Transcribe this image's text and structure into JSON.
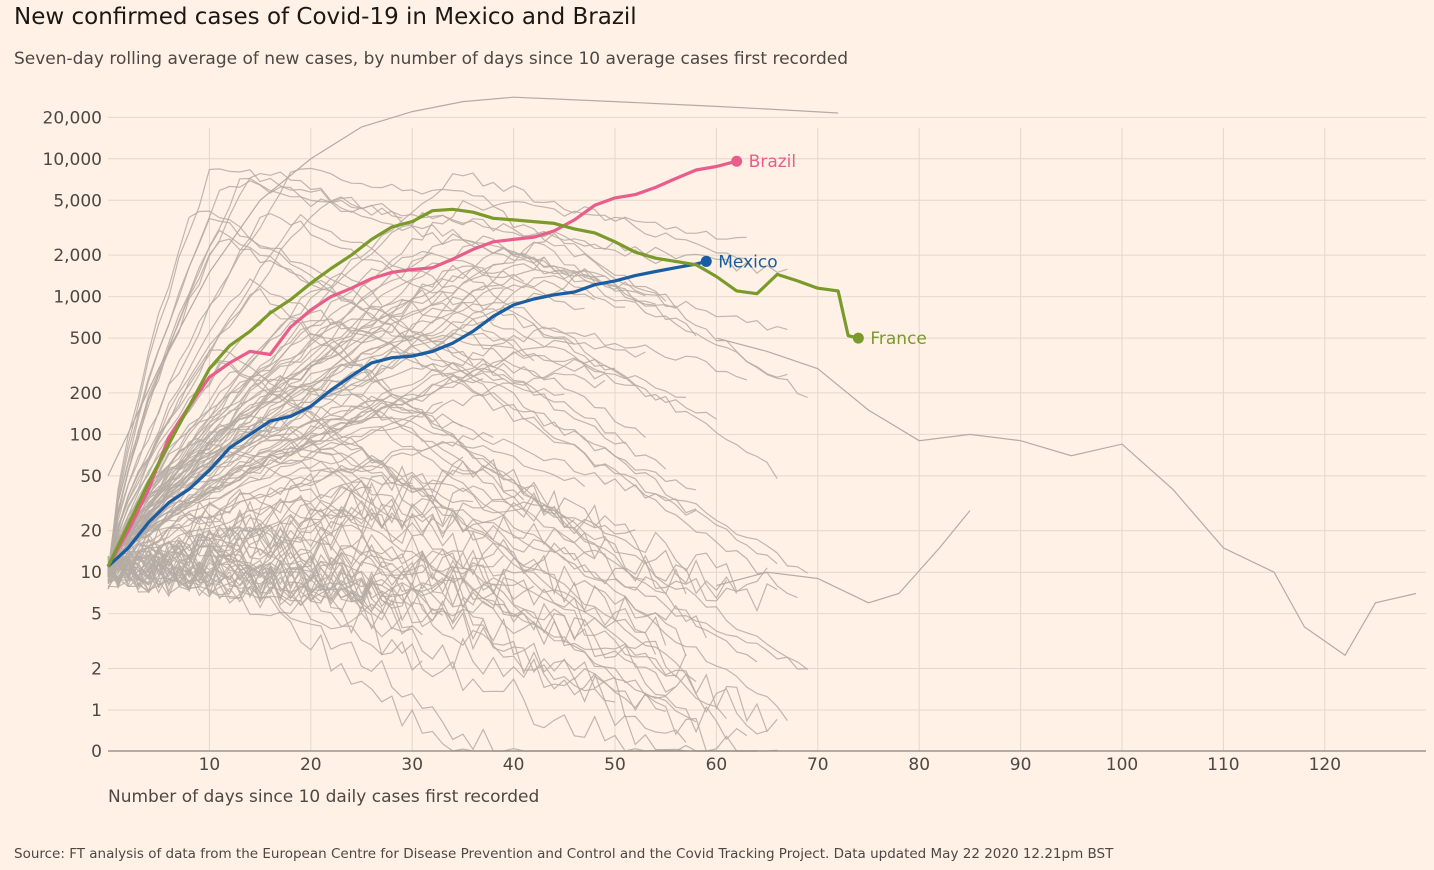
{
  "chart_data": {
    "type": "line",
    "title": "New confirmed cases of Covid-19 in Mexico and Brazil",
    "subtitle": "Seven-day rolling average of new cases, by number of days since 10 average cases first recorded",
    "xlabel": "Number of days since 10 daily cases first recorded",
    "source": "Source: FT analysis of data from the European Centre for Disease Prevention and Control and the Covid Tracking Project. Data updated May 22 2020 12.21pm BST",
    "xlim": [
      0,
      130
    ],
    "y_scale": "log",
    "x_ticks": [
      10,
      20,
      30,
      40,
      50,
      60,
      70,
      80,
      90,
      100,
      110,
      120
    ],
    "x_tick_labels": [
      "10",
      "20",
      "30",
      "40",
      "50",
      "60",
      "70",
      "80",
      "90",
      "100",
      "110",
      "120"
    ],
    "y_ticks": [
      0,
      1,
      2,
      5,
      10,
      20,
      50,
      100,
      200,
      500,
      1000,
      2000,
      5000,
      10000,
      20000
    ],
    "y_tick_labels": [
      "0",
      "1",
      "2",
      "5",
      "10",
      "20",
      "50",
      "100",
      "200",
      "500",
      "1,000",
      "2,000",
      "5,000",
      "10,000",
      "20,000"
    ],
    "grid": true,
    "highlight_series": [
      {
        "name": "Brazil",
        "color": "#e95d8c",
        "x": [
          0,
          2,
          4,
          6,
          8,
          10,
          12,
          14,
          16,
          18,
          20,
          22,
          24,
          26,
          28,
          30,
          32,
          34,
          36,
          38,
          40,
          42,
          44,
          46,
          48,
          50,
          52,
          54,
          56,
          58,
          60,
          62
        ],
        "y": [
          11,
          20,
          40,
          95,
          160,
          260,
          330,
          400,
          380,
          600,
          800,
          1000,
          1150,
          1350,
          1500,
          1570,
          1620,
          1870,
          2200,
          2500,
          2600,
          2700,
          3000,
          3600,
          4600,
          5200,
          5500,
          6200,
          7200,
          8300,
          8800,
          9600
        ]
      },
      {
        "name": "Mexico",
        "color": "#1a5da2",
        "x": [
          0,
          2,
          4,
          6,
          8,
          10,
          12,
          14,
          16,
          18,
          20,
          22,
          24,
          26,
          28,
          30,
          32,
          34,
          36,
          38,
          40,
          42,
          44,
          46,
          48,
          50,
          52,
          54,
          56,
          58,
          59
        ],
        "y": [
          11,
          15,
          23,
          32,
          40,
          55,
          80,
          100,
          125,
          135,
          160,
          210,
          265,
          330,
          360,
          370,
          400,
          460,
          560,
          720,
          870,
          960,
          1030,
          1080,
          1220,
          1300,
          1420,
          1520,
          1620,
          1720,
          1800
        ]
      },
      {
        "name": "France",
        "color": "#7a9a2b",
        "x": [
          0,
          2,
          4,
          6,
          8,
          10,
          12,
          14,
          16,
          18,
          20,
          22,
          24,
          26,
          28,
          30,
          32,
          34,
          36,
          38,
          40,
          42,
          44,
          46,
          48,
          50,
          52,
          54,
          56,
          58,
          60,
          62,
          64,
          66,
          68,
          70,
          72,
          73,
          74
        ],
        "y": [
          11,
          22,
          45,
          85,
          160,
          300,
          440,
          560,
          760,
          950,
          1250,
          1600,
          2000,
          2600,
          3200,
          3500,
          4200,
          4300,
          4100,
          3700,
          3600,
          3500,
          3400,
          3100,
          2900,
          2500,
          2100,
          1900,
          1800,
          1700,
          1400,
          1100,
          1050,
          1450,
          1300,
          1150,
          1100,
          520,
          500
        ]
      }
    ],
    "background_series_count": 120
  }
}
